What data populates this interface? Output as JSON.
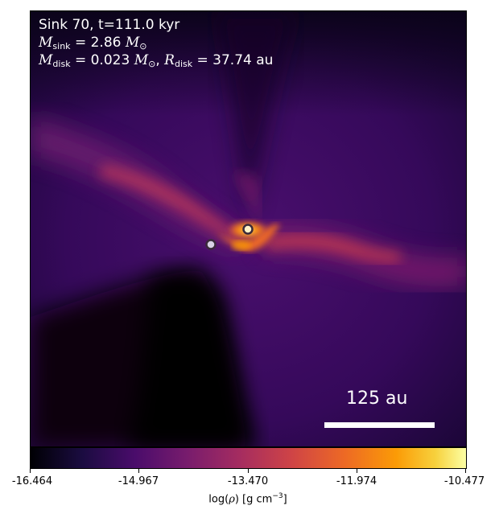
{
  "figure": {
    "title": "Sink 70, t=111.0 kyr",
    "sink_mass": {
      "symbol": "M",
      "sub": "sink",
      "value": "= 2.86",
      "unit_symbol": "M",
      "unit_sub": "⊙"
    },
    "disk_info": {
      "mass_symbol": "M",
      "mass_sub": "disk",
      "mass_value": "= 0.023",
      "mass_unit": "M",
      "mass_unit_sub": "⊙",
      "sep": ",",
      "radius_symbol": "R",
      "radius_sub": "disk",
      "radius_value": "= 37.74 au"
    },
    "scale_bar": {
      "label": "125 au"
    },
    "colormap": "inferno",
    "sinks": [
      {
        "name": "sink-left",
        "fill": "#d9d2e6"
      },
      {
        "name": "sink-right",
        "fill": "#fff4c8"
      }
    ]
  },
  "colorbar": {
    "ticks": [
      "-16.464",
      "-14.967",
      "-13.470",
      "-11.974",
      "-10.477"
    ],
    "label_prefix": "log(",
    "label_rho": "ρ",
    "label_mid": ") [g cm",
    "label_exp": "−3",
    "label_suffix": "]"
  }
}
